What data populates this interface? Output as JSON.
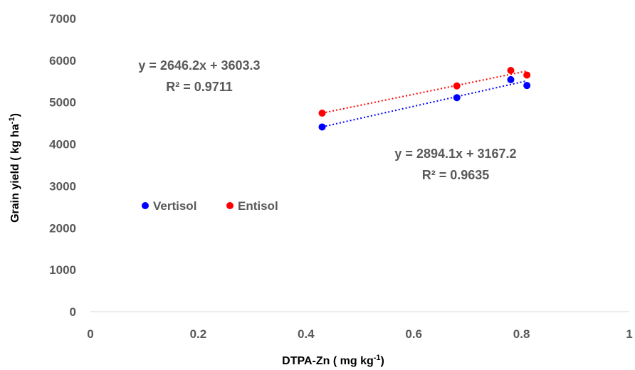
{
  "chart_data": {
    "type": "scatter",
    "xlabel": "DTPA-Zn ( mg kg",
    "xlabel_sup": "-1",
    "xlabel_end": ")",
    "ylabel": "Grain yield ( kg ha",
    "ylabel_sup": "-1",
    "ylabel_end": ")",
    "xlim": [
      0,
      1
    ],
    "ylim": [
      0,
      7000
    ],
    "x_ticks": [
      "0",
      "0.2",
      "0.4",
      "0.6",
      "0.8",
      "1"
    ],
    "y_ticks": [
      "0",
      "1000",
      "2000",
      "3000",
      "4000",
      "5000",
      "6000",
      "7000"
    ],
    "grid": false,
    "legend_position": "center-left",
    "series": [
      {
        "name": "Vertisol",
        "color": "#0000ff",
        "x": [
          0.43,
          0.68,
          0.78,
          0.81
        ],
        "y": [
          4410,
          5110,
          5540,
          5400
        ],
        "trendline": {
          "slope": 2894.1,
          "intercept": 3167.2,
          "x_range": [
            0.43,
            0.81
          ]
        },
        "equation": "y = 2894.1x + 3167.2",
        "r2": "R² = 0.9635"
      },
      {
        "name": "Entisol",
        "color": "#ff0000",
        "x": [
          0.43,
          0.68,
          0.78,
          0.81
        ],
        "y": [
          4740,
          5390,
          5760,
          5650
        ],
        "trendline": {
          "slope": 2646.2,
          "intercept": 3603.3,
          "x_range": [
            0.43,
            0.81
          ]
        },
        "equation": "y = 2646.2x + 3603.3",
        "r2": "R² = 0.9711"
      }
    ]
  }
}
